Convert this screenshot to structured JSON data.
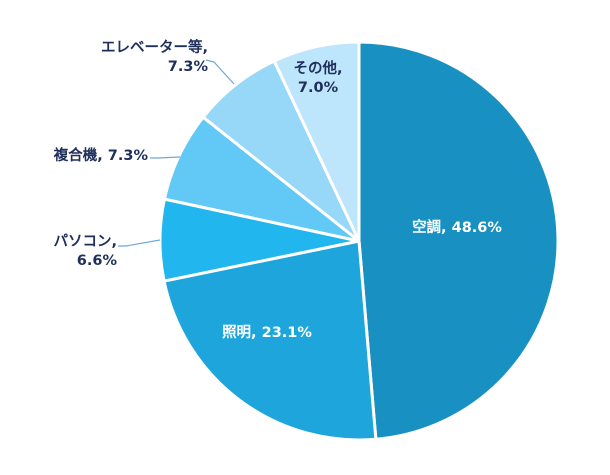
{
  "chart_data": {
    "type": "pie",
    "title": "",
    "slices": [
      {
        "name": "空調",
        "value": 48.6,
        "color": "#1891c2",
        "label_lines": [
          "空調, 48.6%"
        ],
        "placement": "inside"
      },
      {
        "name": "照明",
        "value": 23.1,
        "color": "#1ea5db",
        "label_lines": [
          "照明, 23.1%"
        ],
        "placement": "inside"
      },
      {
        "name": "パソコン",
        "value": 6.6,
        "color": "#21b6ee",
        "label_lines": [
          "パソコン,",
          "6.6%"
        ],
        "placement": "outside"
      },
      {
        "name": "複合機",
        "value": 7.3,
        "color": "#62c8f5",
        "label_lines": [
          "複合機, 7.3%"
        ],
        "placement": "outside"
      },
      {
        "name": "エレベーター等",
        "value": 7.3,
        "color": "#97d7f8",
        "label_lines": [
          "エレベーター等,",
          "7.3%"
        ],
        "placement": "outside"
      },
      {
        "name": "その他",
        "value": 7.0,
        "color": "#bde5fb",
        "label_lines": [
          "その他,",
          "7.0%"
        ],
        "placement": "inside-dark"
      }
    ],
    "start": "12 o'clock",
    "direction": "clockwise",
    "legend": "none"
  }
}
